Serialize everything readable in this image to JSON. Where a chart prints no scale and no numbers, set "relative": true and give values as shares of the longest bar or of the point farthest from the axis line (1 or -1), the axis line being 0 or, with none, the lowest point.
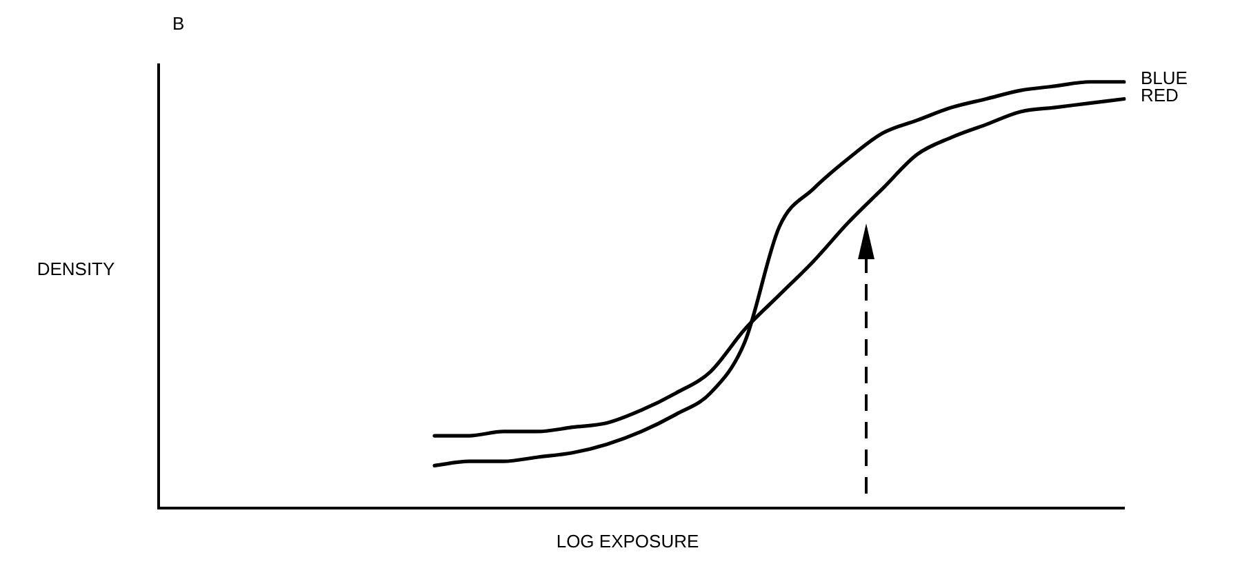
{
  "chart_data": {
    "type": "line",
    "relative": true,
    "xlabel": "LOG EXPOSURE",
    "ylabel": "DENSITY",
    "annotations": [
      "B"
    ],
    "categories": [
      null,
      null,
      null,
      null,
      null,
      null,
      null,
      null,
      null,
      null,
      null,
      null,
      null,
      null,
      null,
      null,
      null,
      null,
      null,
      null,
      null,
      null,
      null,
      null,
      null,
      null,
      null,
      null,
      null
    ],
    "series": [
      {
        "name": "BLUE",
        "color": "#000000",
        "values": [
          null,
          null,
          null,
          null,
          null,
          null,
          null,
          null,
          0.1,
          0.11,
          0.11,
          0.12,
          0.13,
          0.15,
          0.18,
          0.22,
          0.27,
          0.39,
          0.66,
          0.75,
          0.82,
          0.88,
          0.91,
          0.94,
          0.96,
          0.98,
          0.99,
          1,
          1
        ]
      },
      {
        "name": "RED",
        "color": "#000000",
        "values": [
          null,
          null,
          null,
          null,
          null,
          null,
          null,
          null,
          0.17,
          0.17,
          0.18,
          0.18,
          0.19,
          0.2,
          0.23,
          0.27,
          0.32,
          0.42,
          0.5,
          0.58,
          0.67,
          0.75,
          0.83,
          0.87,
          0.9,
          0.93,
          0.94,
          0.95,
          0.96
        ]
      }
    ],
    "grid": false,
    "legend": false,
    "marker": "none",
    "line_style": "solid"
  }
}
